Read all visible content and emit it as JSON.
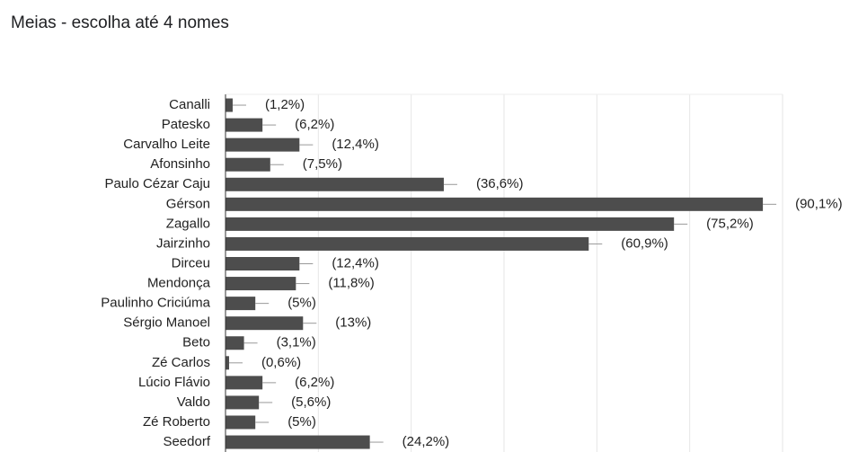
{
  "chart_data": {
    "type": "bar",
    "orientation": "horizontal",
    "title": "Meias - escolha até 4 nomes",
    "categories": [
      "Canalli",
      "Patesko",
      "Carvalho Leite",
      "Afonsinho",
      "Paulo Cézar Caju",
      "Gérson",
      "Zagallo",
      "Jairzinho",
      "Dirceu",
      "Mendonça",
      "Paulinho Criciúma",
      "Sérgio Manoel",
      "Beto",
      "Zé Carlos",
      "Lúcio Flávio",
      "Valdo",
      "Zé Roberto",
      "Seedorf"
    ],
    "values": [
      1.2,
      6.2,
      12.4,
      7.5,
      36.6,
      90.1,
      75.2,
      60.9,
      12.4,
      11.8,
      5,
      13,
      3.1,
      0.6,
      6.2,
      5.6,
      5,
      24.2
    ],
    "value_labels": [
      "(1,2%)",
      "(6,2%)",
      "(12,4%)",
      "(7,5%)",
      "(36,6%)",
      "(90,1%)",
      "(75,2%)",
      "(60,9%)",
      "(12,4%)",
      "(11,8%)",
      "(5%)",
      "(13%)",
      "(3,1%)",
      "(0,6%)",
      "(6,2%)",
      "(5,6%)",
      "(5%)",
      "(24,2%)"
    ],
    "color": "#4d4d4d",
    "xlim": [
      0,
      93.4
    ],
    "grid": true
  }
}
